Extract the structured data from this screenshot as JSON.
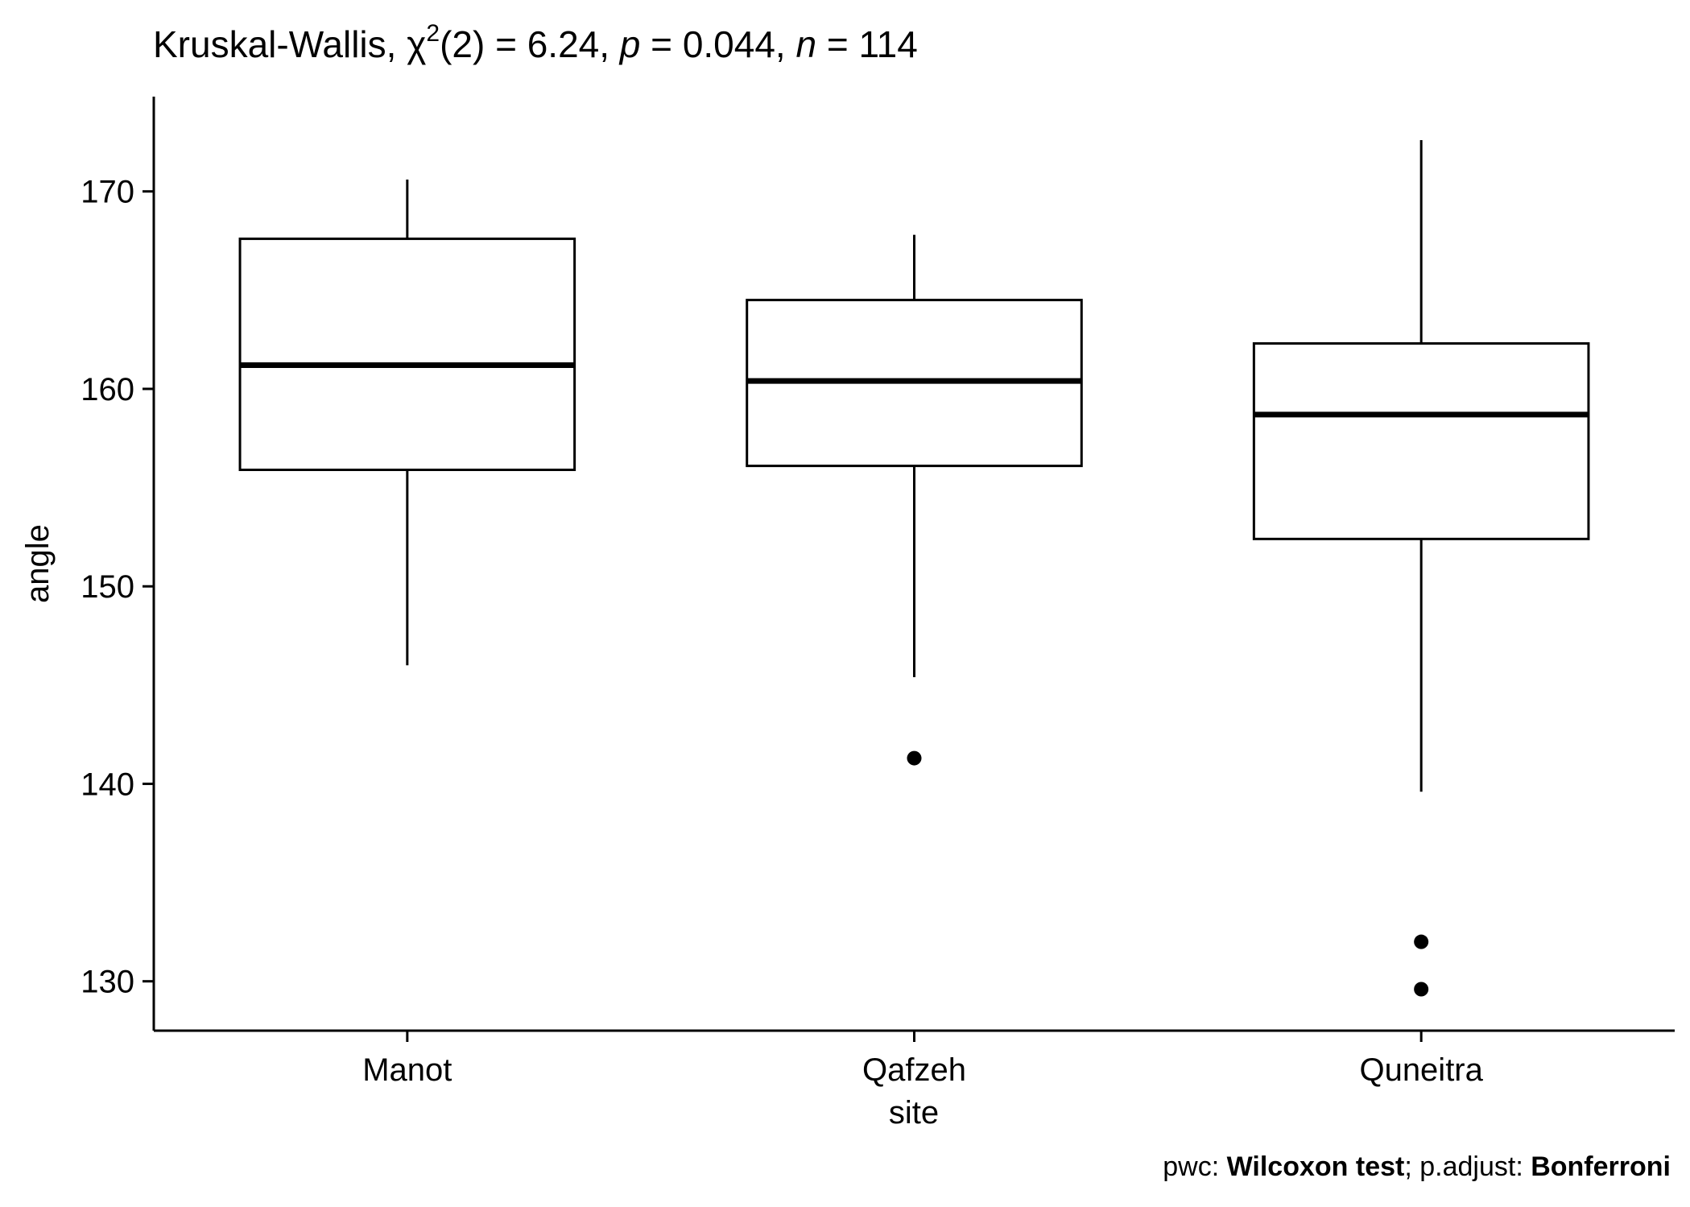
{
  "chart_data": {
    "type": "box",
    "title": {
      "test_name": "Kruskal-Wallis, ",
      "chi": "χ",
      "chi_sup": "2",
      "df_part": "(2) = 6.24, ",
      "p_label": "p",
      "p_part": " = 0.044, ",
      "n_label": "n",
      "n_part": " = 114"
    },
    "xlabel": "site",
    "ylabel": "angle",
    "ylim": [
      127.5,
      174.8
    ],
    "yticks": [
      130,
      140,
      150,
      160,
      170
    ],
    "categories": [
      "Manot",
      "Qafzeh",
      "Quneitra"
    ],
    "boxes": [
      {
        "category": "Manot",
        "whisker_low": 146.0,
        "q1": 155.9,
        "median": 161.2,
        "q3": 167.6,
        "whisker_high": 170.6,
        "outliers": []
      },
      {
        "category": "Qafzeh",
        "whisker_low": 145.4,
        "q1": 156.1,
        "median": 160.4,
        "q3": 164.5,
        "whisker_high": 167.8,
        "outliers": [
          141.3
        ]
      },
      {
        "category": "Quneitra",
        "whisker_low": 139.6,
        "q1": 152.4,
        "median": 158.7,
        "q3": 162.3,
        "whisker_high": 172.6,
        "outliers": [
          132.0,
          129.6
        ]
      }
    ],
    "caption": {
      "pwc_prefix": "pwc: ",
      "pwc_value": "Wilcoxon test",
      "adjust_prefix": "; p.adjust: ",
      "adjust_value": "Bonferroni"
    },
    "grid": false,
    "legend": "none",
    "colors": {
      "line": "#000000",
      "fill": "#ffffff"
    }
  }
}
